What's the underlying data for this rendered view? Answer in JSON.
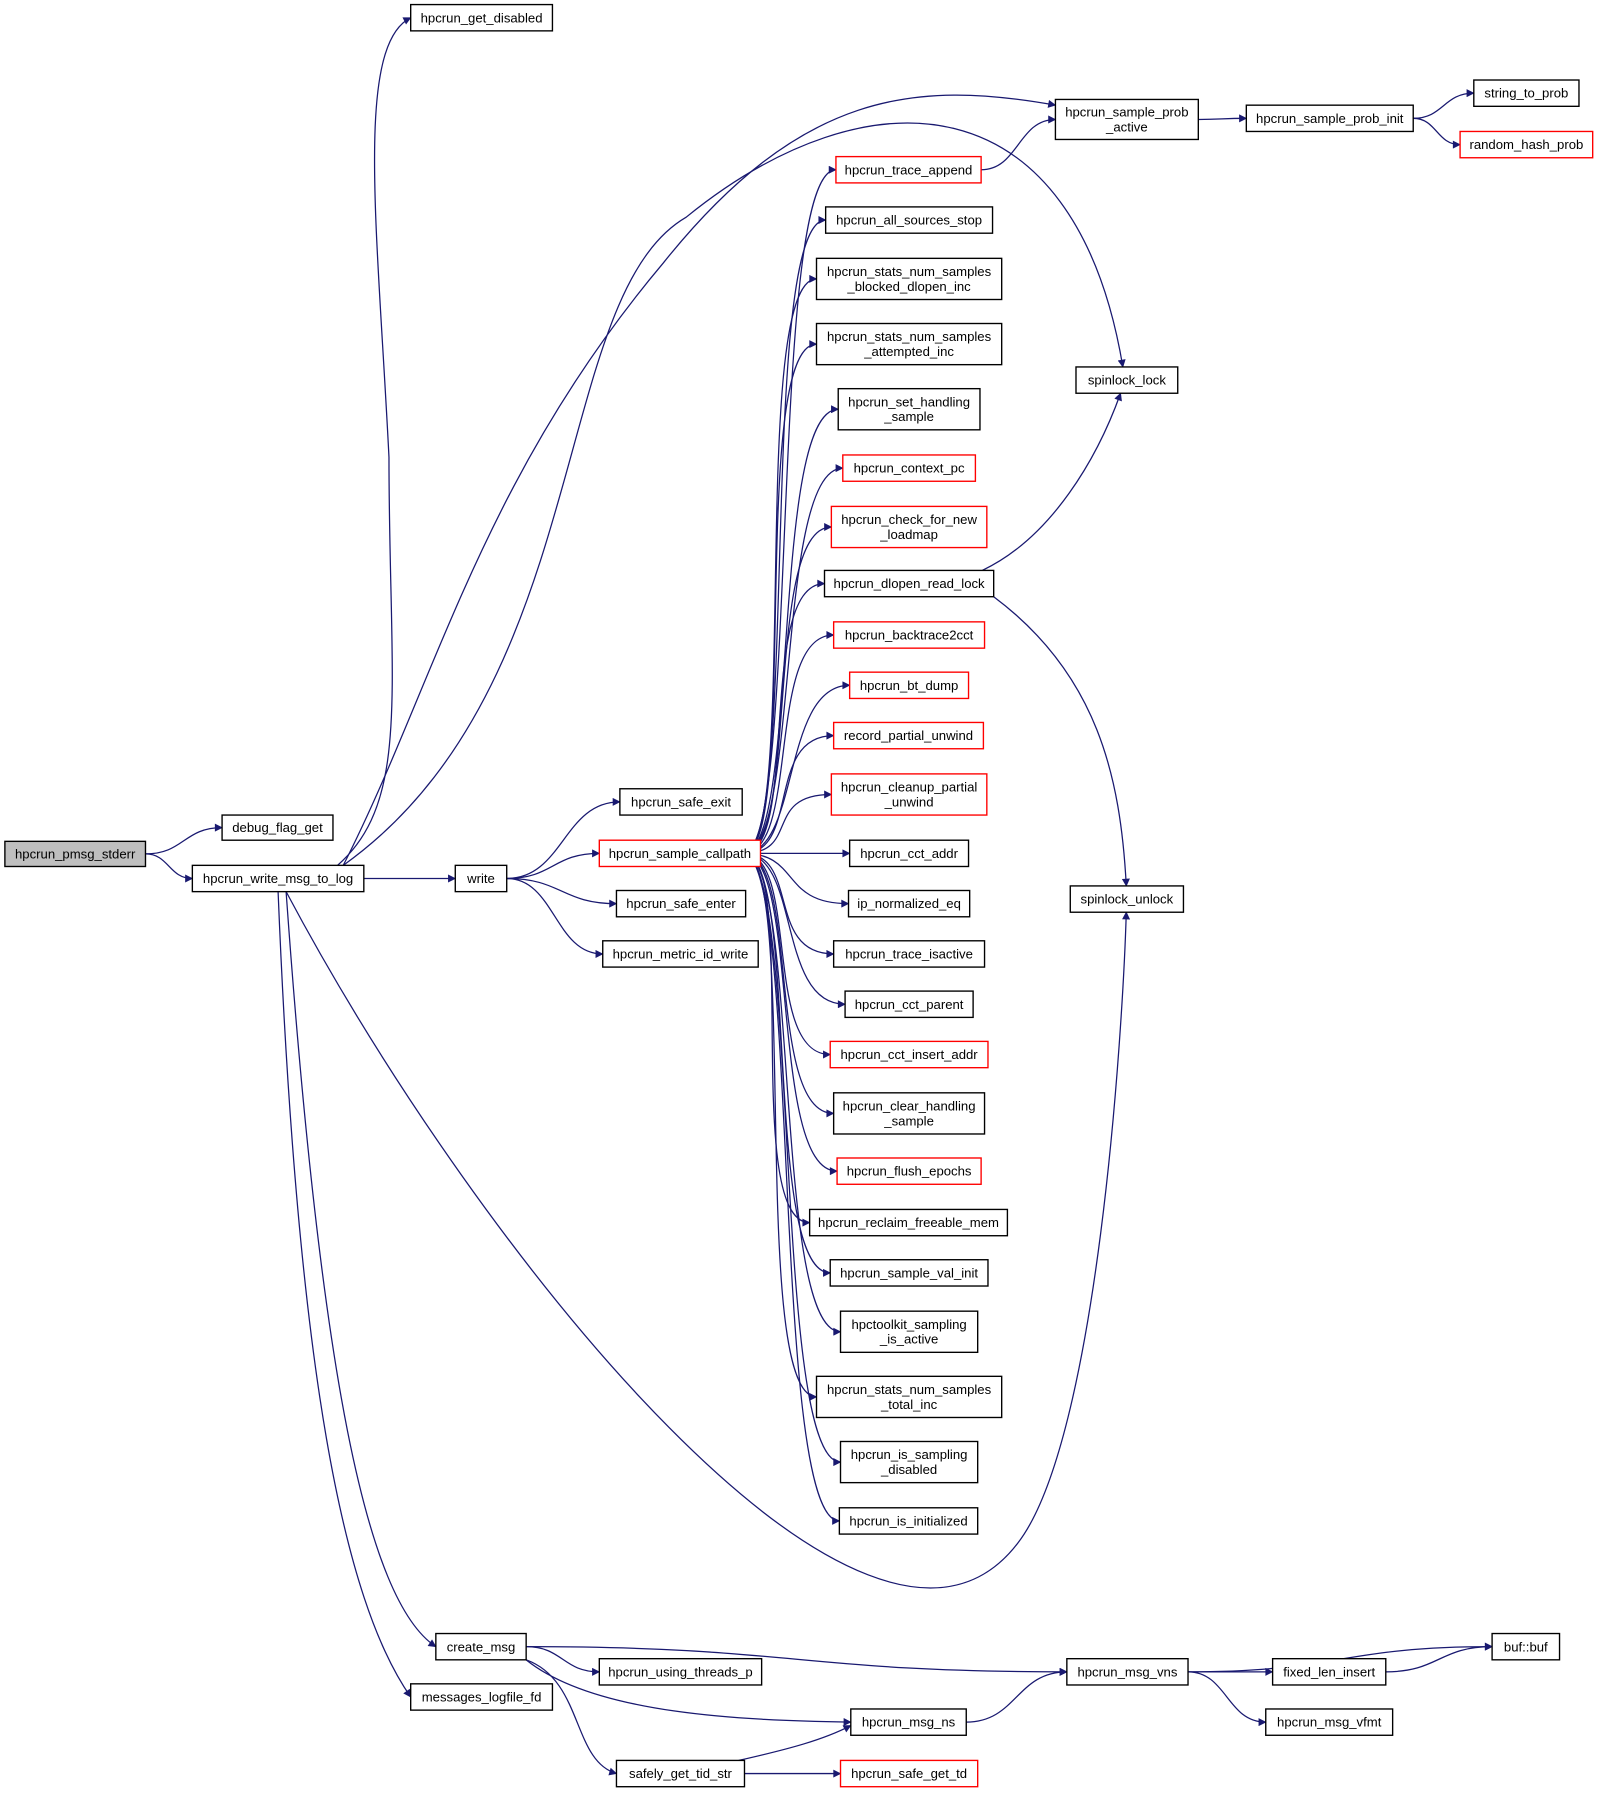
{
  "colors": {
    "edge": "#191970",
    "node_border": "#000000",
    "node_border_external": "#ff0000",
    "root_fill": "#bfbfbf"
  },
  "nodes": [
    {
      "id": "pmsg_stderr",
      "lines": [
        "hpcrun_pmsg_stderr"
      ],
      "root": true
    },
    {
      "id": "debug_flag_get",
      "lines": [
        "debug_flag_get"
      ]
    },
    {
      "id": "write_msg_to_log",
      "lines": [
        "hpcrun_write_msg_to_log"
      ]
    },
    {
      "id": "get_disabled",
      "lines": [
        "hpcrun_get_disabled"
      ]
    },
    {
      "id": "write",
      "lines": [
        "write"
      ]
    },
    {
      "id": "sample_prob_active",
      "lines": [
        "hpcrun_sample_prob",
        "_active"
      ]
    },
    {
      "id": "sample_prob_init",
      "lines": [
        "hpcrun_sample_prob_init"
      ]
    },
    {
      "id": "string_to_prob",
      "lines": [
        "string_to_prob"
      ]
    },
    {
      "id": "random_hash_prob",
      "lines": [
        "random_hash_prob"
      ],
      "red": true
    },
    {
      "id": "spinlock_lock",
      "lines": [
        "spinlock_lock"
      ]
    },
    {
      "id": "spinlock_unlock",
      "lines": [
        "spinlock_unlock"
      ]
    },
    {
      "id": "safe_exit",
      "lines": [
        "hpcrun_safe_exit"
      ]
    },
    {
      "id": "sample_callpath",
      "lines": [
        "hpcrun_sample_callpath"
      ],
      "red": true
    },
    {
      "id": "safe_enter",
      "lines": [
        "hpcrun_safe_enter"
      ]
    },
    {
      "id": "metric_id_write",
      "lines": [
        "hpcrun_metric_id_write"
      ]
    },
    {
      "id": "trace_append",
      "lines": [
        "hpcrun_trace_append"
      ],
      "red": true
    },
    {
      "id": "all_sources_stop",
      "lines": [
        "hpcrun_all_sources_stop"
      ]
    },
    {
      "id": "blocked_dlopen_inc",
      "lines": [
        "hpcrun_stats_num_samples",
        "_blocked_dlopen_inc"
      ]
    },
    {
      "id": "attempted_inc",
      "lines": [
        "hpcrun_stats_num_samples",
        "_attempted_inc"
      ]
    },
    {
      "id": "set_handling_sample",
      "lines": [
        "hpcrun_set_handling",
        "_sample"
      ]
    },
    {
      "id": "context_pc",
      "lines": [
        "hpcrun_context_pc"
      ],
      "red": true
    },
    {
      "id": "check_for_new_loadmap",
      "lines": [
        "hpcrun_check_for_new",
        "_loadmap"
      ],
      "red": true
    },
    {
      "id": "dlopen_read_lock",
      "lines": [
        "hpcrun_dlopen_read_lock"
      ]
    },
    {
      "id": "backtrace2cct",
      "lines": [
        "hpcrun_backtrace2cct"
      ],
      "red": true
    },
    {
      "id": "bt_dump",
      "lines": [
        "hpcrun_bt_dump"
      ],
      "red": true
    },
    {
      "id": "record_partial_unwind",
      "lines": [
        "record_partial_unwind"
      ],
      "red": true
    },
    {
      "id": "cleanup_partial_unwind",
      "lines": [
        "hpcrun_cleanup_partial",
        "_unwind"
      ],
      "red": true
    },
    {
      "id": "cct_addr",
      "lines": [
        "hpcrun_cct_addr"
      ]
    },
    {
      "id": "ip_normalized_eq",
      "lines": [
        "ip_normalized_eq"
      ]
    },
    {
      "id": "trace_isactive",
      "lines": [
        "hpcrun_trace_isactive"
      ]
    },
    {
      "id": "cct_parent",
      "lines": [
        "hpcrun_cct_parent"
      ]
    },
    {
      "id": "cct_insert_addr",
      "lines": [
        "hpcrun_cct_insert_addr"
      ],
      "red": true
    },
    {
      "id": "clear_handling_sample",
      "lines": [
        "hpcrun_clear_handling",
        "_sample"
      ]
    },
    {
      "id": "flush_epochs",
      "lines": [
        "hpcrun_flush_epochs"
      ],
      "red": true
    },
    {
      "id": "reclaim_freeable_mem",
      "lines": [
        "hpcrun_reclaim_freeable_mem"
      ]
    },
    {
      "id": "sample_val_init",
      "lines": [
        "hpcrun_sample_val_init"
      ]
    },
    {
      "id": "sampling_is_active",
      "lines": [
        "hpctoolkit_sampling",
        "_is_active"
      ]
    },
    {
      "id": "total_inc",
      "lines": [
        "hpcrun_stats_num_samples",
        "_total_inc"
      ]
    },
    {
      "id": "is_sampling_disabled",
      "lines": [
        "hpcrun_is_sampling",
        "_disabled"
      ]
    },
    {
      "id": "is_initialized",
      "lines": [
        "hpcrun_is_initialized"
      ]
    },
    {
      "id": "create_msg",
      "lines": [
        "create_msg"
      ]
    },
    {
      "id": "messages_logfile_fd",
      "lines": [
        "messages_logfile_fd"
      ]
    },
    {
      "id": "using_threads_p",
      "lines": [
        "hpcrun_using_threads_p"
      ]
    },
    {
      "id": "msg_vns",
      "lines": [
        "hpcrun_msg_vns"
      ]
    },
    {
      "id": "msg_ns",
      "lines": [
        "hpcrun_msg_ns"
      ]
    },
    {
      "id": "safely_get_tid_str",
      "lines": [
        "safely_get_tid_str"
      ]
    },
    {
      "id": "safe_get_td",
      "lines": [
        "hpcrun_safe_get_td"
      ],
      "red": true
    },
    {
      "id": "buf",
      "lines": [
        "buf::buf"
      ]
    },
    {
      "id": "fixed_len_insert",
      "lines": [
        "fixed_len_insert"
      ]
    },
    {
      "id": "msg_vfmt",
      "lines": [
        "hpcrun_msg_vfmt"
      ]
    }
  ],
  "edges": [
    [
      "pmsg_stderr",
      "debug_flag_get"
    ],
    [
      "pmsg_stderr",
      "write_msg_to_log"
    ],
    [
      "write_msg_to_log",
      "get_disabled"
    ],
    [
      "write_msg_to_log",
      "sample_prob_active"
    ],
    [
      "write_msg_to_log",
      "spinlock_lock"
    ],
    [
      "write_msg_to_log",
      "write"
    ],
    [
      "write_msg_to_log",
      "spinlock_unlock"
    ],
    [
      "write_msg_to_log",
      "create_msg"
    ],
    [
      "write_msg_to_log",
      "messages_logfile_fd"
    ],
    [
      "write",
      "safe_exit"
    ],
    [
      "write",
      "sample_callpath"
    ],
    [
      "write",
      "safe_enter"
    ],
    [
      "write",
      "metric_id_write"
    ],
    [
      "sample_callpath",
      "trace_append"
    ],
    [
      "sample_callpath",
      "all_sources_stop"
    ],
    [
      "sample_callpath",
      "blocked_dlopen_inc"
    ],
    [
      "sample_callpath",
      "attempted_inc"
    ],
    [
      "sample_callpath",
      "set_handling_sample"
    ],
    [
      "sample_callpath",
      "context_pc"
    ],
    [
      "sample_callpath",
      "check_for_new_loadmap"
    ],
    [
      "sample_callpath",
      "dlopen_read_lock"
    ],
    [
      "sample_callpath",
      "backtrace2cct"
    ],
    [
      "sample_callpath",
      "bt_dump"
    ],
    [
      "sample_callpath",
      "record_partial_unwind"
    ],
    [
      "sample_callpath",
      "cleanup_partial_unwind"
    ],
    [
      "sample_callpath",
      "cct_addr"
    ],
    [
      "sample_callpath",
      "ip_normalized_eq"
    ],
    [
      "sample_callpath",
      "trace_isactive"
    ],
    [
      "sample_callpath",
      "cct_parent"
    ],
    [
      "sample_callpath",
      "cct_insert_addr"
    ],
    [
      "sample_callpath",
      "clear_handling_sample"
    ],
    [
      "sample_callpath",
      "flush_epochs"
    ],
    [
      "sample_callpath",
      "reclaim_freeable_mem"
    ],
    [
      "sample_callpath",
      "sample_val_init"
    ],
    [
      "sample_callpath",
      "sampling_is_active"
    ],
    [
      "sample_callpath",
      "total_inc"
    ],
    [
      "sample_callpath",
      "is_sampling_disabled"
    ],
    [
      "sample_callpath",
      "is_initialized"
    ],
    [
      "trace_append",
      "sample_prob_active"
    ],
    [
      "sample_prob_active",
      "sample_prob_init"
    ],
    [
      "sample_prob_init",
      "string_to_prob"
    ],
    [
      "sample_prob_init",
      "random_hash_prob"
    ],
    [
      "dlopen_read_lock",
      "spinlock_lock"
    ],
    [
      "dlopen_read_lock",
      "spinlock_unlock"
    ],
    [
      "create_msg",
      "msg_vns"
    ],
    [
      "create_msg",
      "using_threads_p"
    ],
    [
      "create_msg",
      "msg_ns"
    ],
    [
      "create_msg",
      "safely_get_tid_str"
    ],
    [
      "safely_get_tid_str",
      "msg_ns"
    ],
    [
      "safely_get_tid_str",
      "safe_get_td"
    ],
    [
      "msg_ns",
      "msg_vns"
    ],
    [
      "msg_vns",
      "buf"
    ],
    [
      "msg_vns",
      "fixed_len_insert"
    ],
    [
      "msg_vns",
      "msg_vfmt"
    ],
    [
      "fixed_len_insert",
      "buf"
    ]
  ]
}
